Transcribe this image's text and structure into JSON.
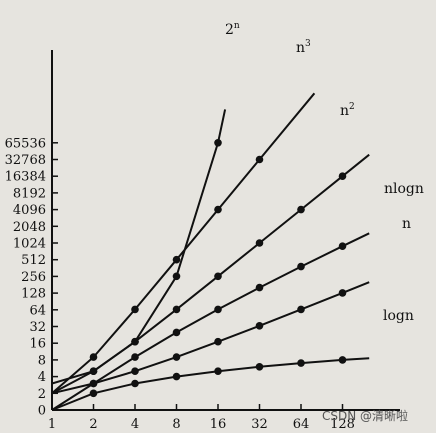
{
  "chart_data": {
    "type": "line",
    "x_ticks": [
      "1",
      "2",
      "4",
      "8",
      "16",
      "32",
      "64",
      "128"
    ],
    "y_ticks": [
      "0",
      "2",
      "4",
      "8",
      "16",
      "32",
      "64",
      "128",
      "256",
      "512",
      "1024",
      "2048",
      "4096",
      "8192",
      "16384",
      "32768",
      "65536"
    ],
    "x_scale": "log2",
    "y_scale": "log2",
    "grid": false,
    "series": [
      {
        "name_main": "log",
        "name_sup": "",
        "name_tail": "n",
        "points": [
          [
            2,
            1
          ],
          [
            4,
            2
          ],
          [
            8,
            3
          ],
          [
            16,
            4
          ],
          [
            32,
            5
          ],
          [
            64,
            6
          ],
          [
            128,
            7
          ]
        ],
        "extend": [
          [
            1,
            0
          ],
          [
            200,
            7.6
          ]
        ]
      },
      {
        "name_main": "n",
        "name_sup": "",
        "name_tail": "",
        "points": [
          [
            2,
            2
          ],
          [
            4,
            4
          ],
          [
            8,
            8
          ],
          [
            16,
            16
          ],
          [
            32,
            32
          ],
          [
            64,
            64
          ],
          [
            128,
            128
          ]
        ],
        "extend": [
          [
            1,
            1
          ],
          [
            200,
            200
          ]
        ]
      },
      {
        "name_main": "nlogn",
        "name_sup": "",
        "name_tail": "",
        "points": [
          [
            2,
            2
          ],
          [
            4,
            8
          ],
          [
            8,
            24
          ],
          [
            16,
            64
          ],
          [
            32,
            160
          ],
          [
            64,
            384
          ],
          [
            128,
            896
          ]
        ],
        "extend": [
          [
            1,
            0
          ],
          [
            200,
            1530
          ]
        ]
      },
      {
        "name_main": "n",
        "name_sup": "2",
        "name_tail": "",
        "points": [
          [
            2,
            4
          ],
          [
            4,
            16
          ],
          [
            8,
            64
          ],
          [
            16,
            256
          ],
          [
            32,
            1024
          ],
          [
            64,
            4096
          ],
          [
            128,
            16384
          ]
        ],
        "extend": [
          [
            1,
            1
          ],
          [
            200,
            40000
          ]
        ]
      },
      {
        "name_main": "n",
        "name_sup": "3",
        "name_tail": "",
        "points": [
          [
            2,
            8
          ],
          [
            4,
            64
          ],
          [
            8,
            512
          ],
          [
            16,
            4096
          ],
          [
            32,
            32768
          ]
        ],
        "extend": [
          [
            1,
            1
          ],
          [
            80,
            512000
          ]
        ]
      },
      {
        "name_main": "2",
        "name_sup": "n",
        "name_tail": "",
        "points": [
          [
            2,
            4
          ],
          [
            4,
            16
          ],
          [
            8,
            256
          ],
          [
            16,
            65536
          ]
        ],
        "extend": [
          [
            1,
            2
          ],
          [
            18,
            262144
          ]
        ]
      }
    ]
  },
  "watermark": "CSDN @清晰啦"
}
